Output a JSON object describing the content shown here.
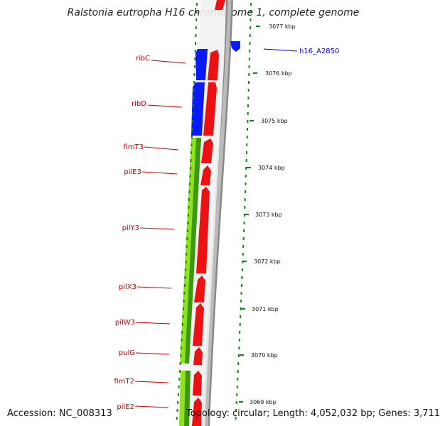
{
  "title": "Ralstonia eutropha H16 chromosome 1, complete genome",
  "footer": {
    "accession": "Accession: NC_008313",
    "summary": "Topology: circular; Length: 4,052,032 bp; Genes: 3,711"
  },
  "colors": {
    "forward_gene": "#ee1111",
    "reverse_gene": "#1122dd",
    "operon_band": "#99ee22",
    "label": "#cc0000",
    "highlight_label": "#0000cc",
    "tick": "#118811"
  },
  "scale": {
    "ticks": [
      "3077 kbp",
      "3076 kbp",
      "3075 kbp",
      "3074 kbp",
      "3073 kbp",
      "3072 kbp",
      "3071 kbp",
      "3070 kbp",
      "3069 kbp"
    ]
  },
  "genes": [
    {
      "label": "ribC",
      "strand": "reverse"
    },
    {
      "label": "ribD",
      "strand": "reverse"
    },
    {
      "label": "fimT3",
      "strand": "forward"
    },
    {
      "label": "pilE3",
      "strand": "forward"
    },
    {
      "label": "pilY3",
      "strand": "forward"
    },
    {
      "label": "pilX3",
      "strand": "forward"
    },
    {
      "label": "pilW3",
      "strand": "forward"
    },
    {
      "label": "pulG",
      "strand": "forward"
    },
    {
      "label": "fimT2",
      "strand": "forward"
    },
    {
      "label": "pilE2",
      "strand": "forward"
    }
  ],
  "highlight": {
    "label": "h16_A2850"
  }
}
